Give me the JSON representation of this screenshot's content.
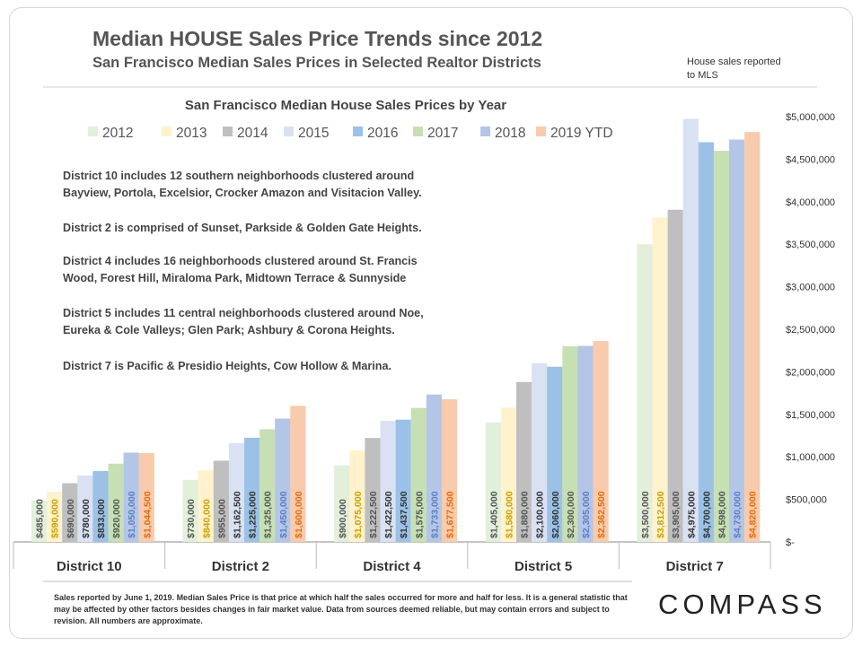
{
  "header": {
    "title": "Median HOUSE Sales Price Trends since 2012",
    "subtitle": "San Francisco Median Sales Prices in Selected Realtor Districts",
    "note": "House sales reported to MLS"
  },
  "chart_data": {
    "type": "bar",
    "title": "San Francisco Median House Sales Prices by Year",
    "categories": [
      "District 10",
      "District 2",
      "District 4",
      "District 5",
      "District 7"
    ],
    "series": [
      {
        "name": "2012",
        "color": "#e2efda",
        "values": [
          485000,
          730000,
          900000,
          1405000,
          3500000
        ]
      },
      {
        "name": "2013",
        "color": "#fff2cc",
        "values": [
          590000,
          840000,
          1075000,
          1580000,
          3812500
        ]
      },
      {
        "name": "2014",
        "color": "#bfbfbf",
        "values": [
          690000,
          955000,
          1222500,
          1880000,
          3905000
        ]
      },
      {
        "name": "2015",
        "color": "#d9e1f2",
        "values": [
          780000,
          1162500,
          1422500,
          2100000,
          4975000
        ]
      },
      {
        "name": "2016",
        "color": "#9bc2e6",
        "values": [
          833000,
          1225000,
          1437500,
          2060000,
          4700000
        ]
      },
      {
        "name": "2017",
        "color": "#c6e0b4",
        "values": [
          920000,
          1325000,
          1575000,
          2300000,
          4598000
        ]
      },
      {
        "name": "2018",
        "color": "#b4c6e7",
        "values": [
          1050000,
          1450000,
          1733000,
          2305000,
          4730000
        ]
      },
      {
        "name": "2019 YTD",
        "color": "#f8cbad",
        "values": [
          1044500,
          1600000,
          1677500,
          2362500,
          4820000
        ]
      }
    ],
    "data_labels": [
      [
        "$485,000",
        "$590,000",
        "$690,000",
        "$780,000",
        "$833,000",
        "$920,000",
        "$1,050,000",
        "$1,044,500"
      ],
      [
        "$730,000",
        "$840,000",
        "$955,000",
        "$1,162,500",
        "$1,225,000",
        "$1,325,000",
        "$1,450,000",
        "$1,600,000"
      ],
      [
        "$900,000",
        "$1,075,000",
        "$1,222,500",
        "$1,422,500",
        "$1,437,500",
        "$1,575,000",
        "$1,733,000",
        "$1,677,500"
      ],
      [
        "$1,405,000",
        "$1,580,000",
        "$1,880,000",
        "$2,100,000",
        "$2,060,000",
        "$2,300,000",
        "$2,305,000",
        "$2,362,500"
      ],
      [
        "$3,500,000",
        "$3,812,500",
        "$3,905,000",
        "$4,975,000",
        "$4,700,000",
        "$4,598,000",
        "$4,730,000",
        "$4,820,000"
      ]
    ],
    "label_colors": [
      "#555555",
      "#c9a000",
      "#555555",
      "#333333",
      "#333333",
      "#555555",
      "#5b7fc4",
      "#e46c0a"
    ],
    "yticks": [
      0,
      500000,
      1000000,
      1500000,
      2000000,
      2500000,
      3000000,
      3500000,
      4000000,
      4500000,
      5000000
    ],
    "ytick_labels": [
      "$-",
      "$500,000",
      "$1,000,000",
      "$1,500,000",
      "$2,000,000",
      "$2,500,000",
      "$3,000,000",
      "$3,500,000",
      "$4,000,000",
      "$4,500,000",
      "$5,000,000"
    ],
    "ylim": [
      0,
      5000000
    ],
    "axis_side": "right",
    "legend_position": "top",
    "annotations": [
      "District 10 includes 12 southern neighborhoods clustered around",
      "Bayview, Portola, Excelsior, Crocker Amazon and Visitacion Valley.",
      "District 2 is comprised of Sunset, Parkside & Golden Gate Heights.",
      "District 4 includes 16 neighborhoods clustered around St. Francis",
      "Wood, Forest Hill, Miraloma Park, Midtown Terrace & Sunnyside",
      "District 5 includes 11 central neighborhoods clustered around Noe,",
      "Eureka & Cole Valleys; Glen Park; Ashbury & Corona Heights.",
      "District 7 is Pacific & Presidio Heights, Cow Hollow & Marina."
    ]
  },
  "footer": {
    "text": "Sales reported by June 1, 2019. Median Sales Price is that price at which half the sales occurred for more and half for less. It is a general statistic that may be affected by other factors besides changes in fair market value. Data from sources deemed reliable, but may contain errors and subject to revision.   All numbers are approximate.",
    "logo": "COMPASS"
  }
}
